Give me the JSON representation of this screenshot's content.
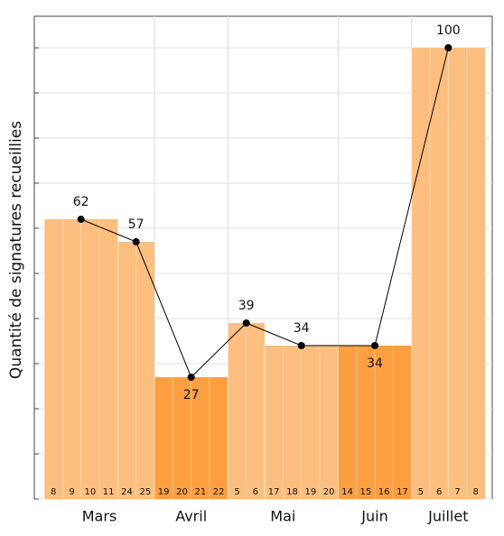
{
  "chart_data": {
    "type": "bar",
    "y_label": "Quantité de signatures recueillies",
    "ylim": [
      0,
      107
    ],
    "yticks": [
      0,
      10,
      20,
      30,
      40,
      50,
      60,
      70,
      80,
      90,
      100
    ],
    "grid": true,
    "line_color": "#000000",
    "months": [
      {
        "name": "Mars",
        "color": "#fdbf80",
        "weeks": [
          {
            "days": [
              8,
              9,
              10,
              11
            ],
            "value": 62
          },
          {
            "days": [
              24,
              25
            ],
            "value": 57
          }
        ]
      },
      {
        "name": "Avril",
        "color": "#fd9f40",
        "weeks": [
          {
            "days": [
              19,
              20,
              21,
              22
            ],
            "value": 27
          }
        ]
      },
      {
        "name": "Mai",
        "color": "#fdbf80",
        "weeks": [
          {
            "days": [
              5,
              6
            ],
            "value": 39
          },
          {
            "days": [
              17,
              18,
              19,
              20
            ],
            "value": 34
          }
        ]
      },
      {
        "name": "Juin",
        "color": "#fd9f40",
        "weeks": [
          {
            "days": [
              14,
              15,
              16,
              17
            ],
            "value": 34
          }
        ]
      },
      {
        "name": "Juillet",
        "color": "#fdbf80",
        "weeks": [
          {
            "days": [
              5,
              6,
              7,
              8
            ],
            "value": 100
          }
        ]
      }
    ]
  }
}
